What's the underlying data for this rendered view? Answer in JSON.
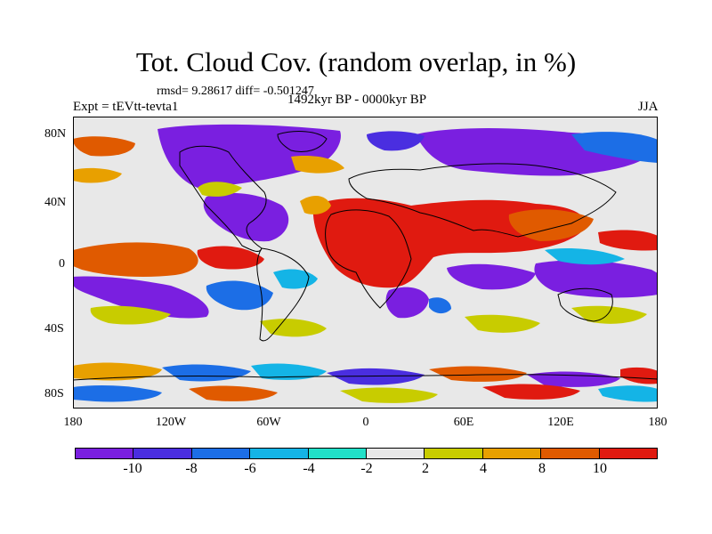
{
  "title": "Tot. Cloud Cov. (random overlap, in %)",
  "stats_line": "rmsd= 9.28617 diff= -0.501247",
  "experiment": "Expt = tEVtt-tevta1",
  "period": "1492kyr BP - 0000kyr BP",
  "season": "JJA",
  "lat_labels": [
    "80N",
    "40N",
    "0",
    "40S",
    "80S"
  ],
  "lon_labels": [
    "180",
    "120W",
    "60W",
    "0",
    "60E",
    "120E",
    "180"
  ],
  "colorbar": {
    "labels": [
      "-10",
      "-8",
      "-6",
      "-4",
      "-2",
      "2",
      "4",
      "8",
      "10"
    ],
    "colors": [
      "#7a1fe0",
      "#4a2ee0",
      "#1c6ee6",
      "#14b4e6",
      "#22e0c8",
      "#e8e8e8",
      "#c8cc00",
      "#e8a000",
      "#e05a00",
      "#e01a10"
    ]
  },
  "map_colors": {
    "background": "#e8e8e8",
    "strong_negative": "#7a1fe0",
    "negative": "#1c6ee6",
    "weak_negative": "#14b4e6",
    "slight_negative": "#22e0c8",
    "slight_positive": "#c8cc00",
    "positive": "#e8a000",
    "strong_positive": "#e01a10",
    "coast": "#000000"
  }
}
